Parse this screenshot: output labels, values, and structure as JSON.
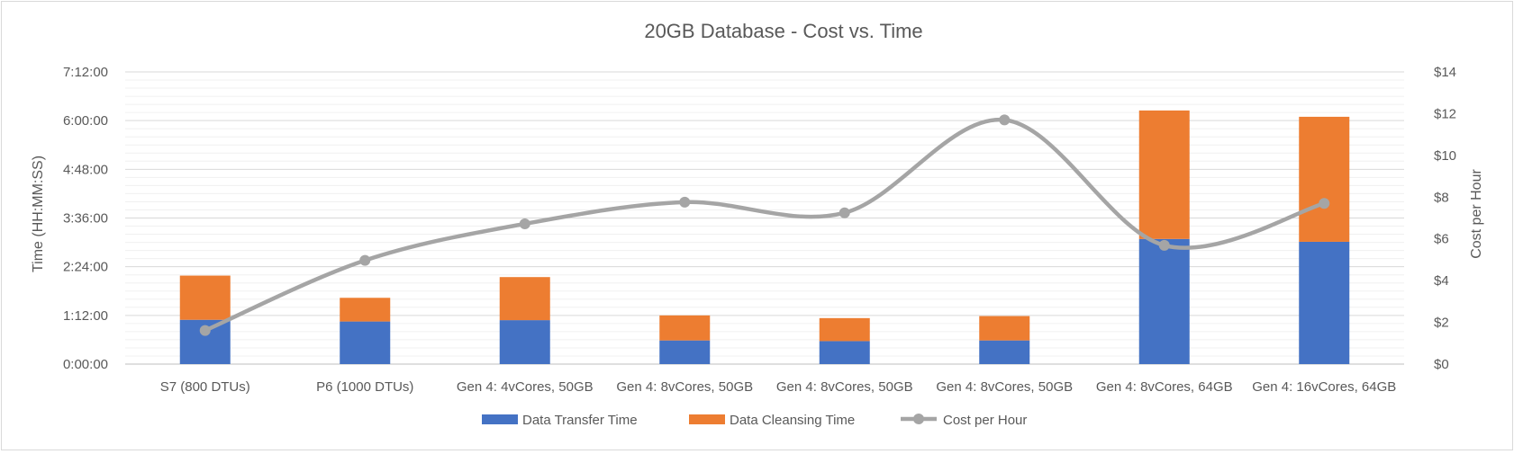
{
  "chart_data": {
    "type": "bar",
    "title": "20GB Database - Cost vs. Time",
    "xlabel": "",
    "ylabel": "Time (HH:MM:SS)",
    "y2label": "Cost per Hour",
    "categories": [
      "S7 (800 DTUs)",
      "P6 (1000 DTUs)",
      "Gen 4: 4vCores, 50GB",
      "Gen 4: 8vCores, 50GB",
      "Gen 4: 8vCores, 50GB",
      "Gen 4: 8vCores, 50GB",
      "Gen 4: 8vCores, 64GB",
      "Gen 4: 16vCores, 64GB"
    ],
    "ylim_seconds": [
      0,
      25920
    ],
    "y_ticks": [
      "0:00:00",
      "1:12:00",
      "2:24:00",
      "3:36:00",
      "4:48:00",
      "6:00:00",
      "7:12:00"
    ],
    "y2lim": [
      0,
      14
    ],
    "y2_ticks": [
      "$0",
      "$2",
      "$4",
      "$6",
      "$8",
      "$10",
      "$12",
      "$14"
    ],
    "series": [
      {
        "name": "Data Transfer Time",
        "kind": "stacked-bar",
        "color": "#4472C4",
        "unit": "seconds",
        "values": [
          3930,
          3780,
          3900,
          2100,
          2040,
          2100,
          11100,
          10850
        ]
      },
      {
        "name": "Data Cleansing Time",
        "kind": "stacked-bar",
        "color": "#ED7D31",
        "unit": "seconds",
        "values": [
          3920,
          2100,
          3820,
          2220,
          2040,
          2160,
          11400,
          11090
        ]
      },
      {
        "name": "Cost per Hour",
        "kind": "smooth-line",
        "axis": "secondary",
        "color": "#A5A5A5",
        "unit": "USD",
        "values": [
          1.61,
          4.97,
          6.72,
          7.76,
          7.25,
          11.7,
          5.69,
          7.7
        ]
      }
    ],
    "grid": true,
    "legend_position": "bottom"
  }
}
